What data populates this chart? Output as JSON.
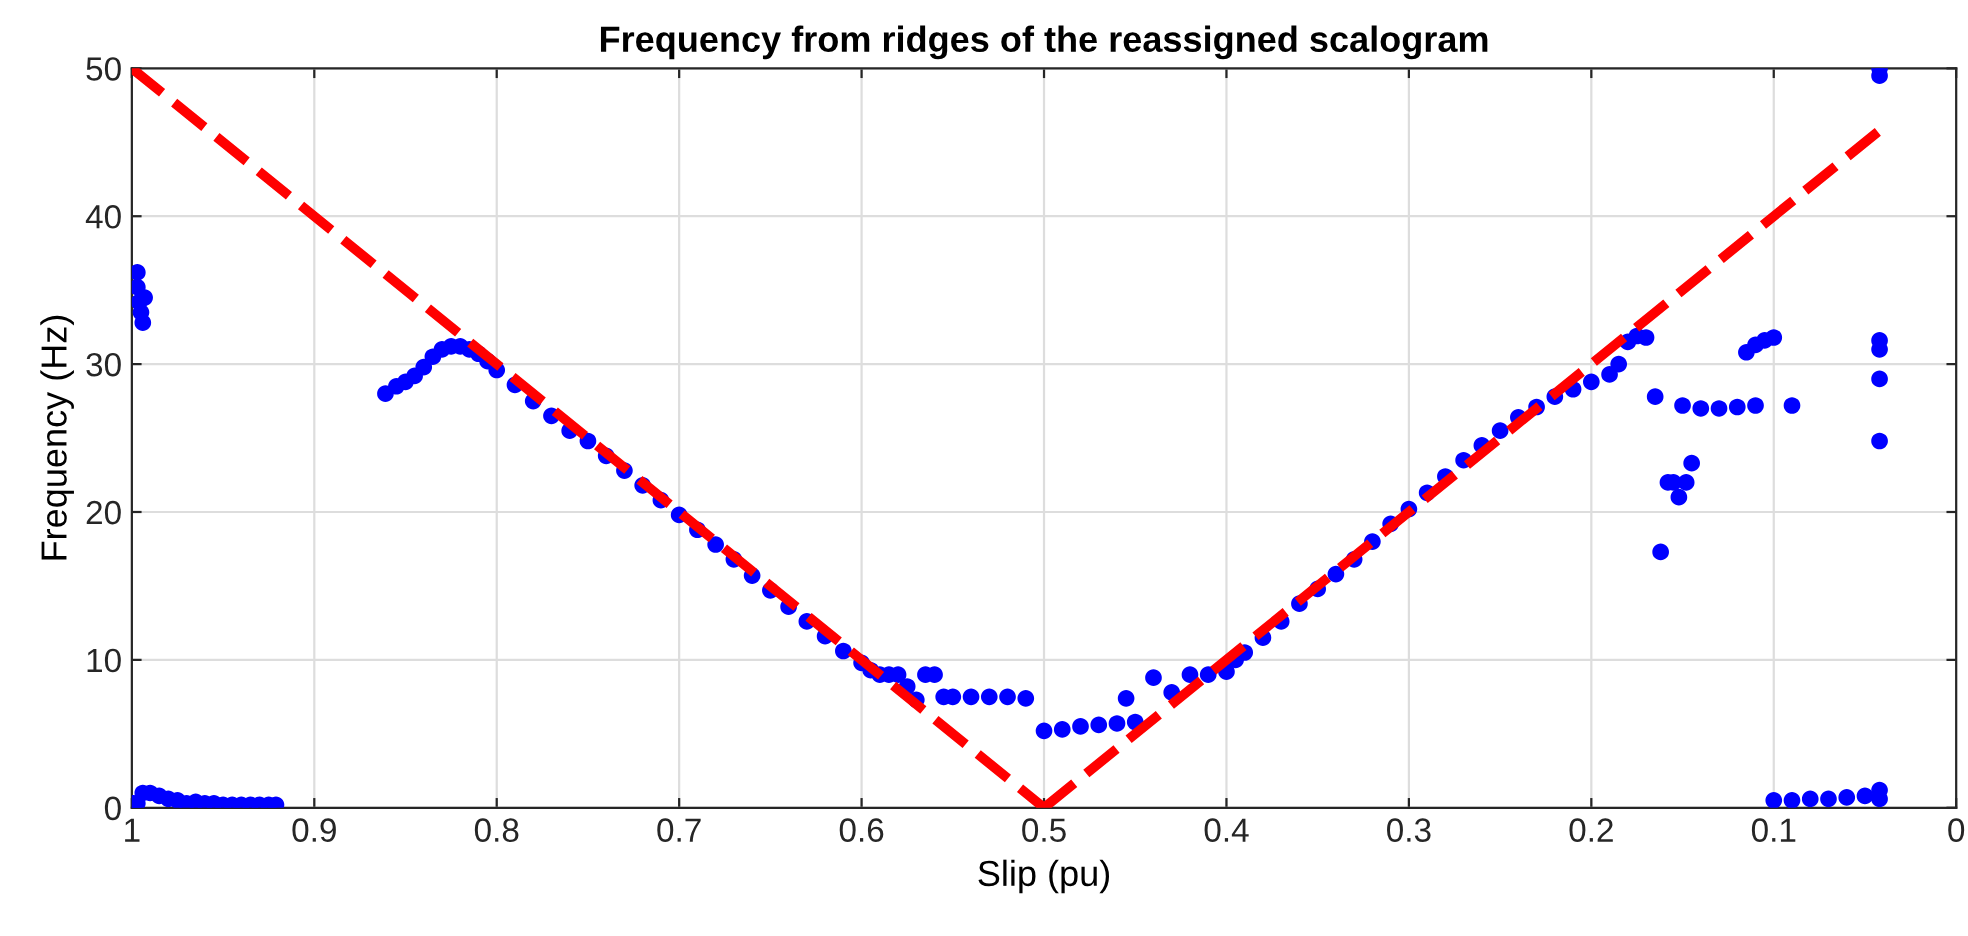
{
  "chart_data": {
    "type": "scatter",
    "title": "Frequency from ridges of the reassigned scalogram",
    "xlabel": "Slip (pu)",
    "ylabel": "Frequency (Hz)",
    "xlim": [
      1,
      0
    ],
    "ylim": [
      0,
      50
    ],
    "xticks": [
      1,
      0.9,
      0.8,
      0.7,
      0.6,
      0.5,
      0.4,
      0.3,
      0.2,
      0.1,
      0
    ],
    "yticks": [
      0,
      10,
      20,
      30,
      40,
      50
    ],
    "grid": true,
    "legend": false,
    "series": [
      {
        "color": "#0000ff",
        "marker": "circle",
        "x": [
          0.999,
          0.997,
          0.997,
          0.996,
          0.995,
          0.994,
          0.993,
          0.997,
          0.994,
          0.99,
          0.985,
          0.98,
          0.975,
          0.97,
          0.965,
          0.96,
          0.955,
          0.95,
          0.945,
          0.94,
          0.935,
          0.93,
          0.925,
          0.921,
          0.861,
          0.855,
          0.85,
          0.845,
          0.84,
          0.835,
          0.83,
          0.825,
          0.82,
          0.815,
          0.81,
          0.805,
          0.8,
          0.79,
          0.78,
          0.77,
          0.76,
          0.75,
          0.74,
          0.73,
          0.72,
          0.71,
          0.7,
          0.69,
          0.68,
          0.67,
          0.66,
          0.65,
          0.64,
          0.63,
          0.62,
          0.61,
          0.6,
          0.595,
          0.59,
          0.585,
          0.58,
          0.575,
          0.57,
          0.565,
          0.56,
          0.555,
          0.55,
          0.54,
          0.53,
          0.52,
          0.51,
          0.5,
          0.49,
          0.48,
          0.47,
          0.46,
          0.455,
          0.45,
          0.44,
          0.43,
          0.42,
          0.41,
          0.4,
          0.395,
          0.39,
          0.38,
          0.37,
          0.36,
          0.35,
          0.34,
          0.33,
          0.32,
          0.31,
          0.3,
          0.29,
          0.28,
          0.27,
          0.26,
          0.25,
          0.24,
          0.23,
          0.22,
          0.21,
          0.2,
          0.19,
          0.185,
          0.18,
          0.175,
          0.17,
          0.165,
          0.162,
          0.158,
          0.155,
          0.152,
          0.148,
          0.145,
          0.15,
          0.14,
          0.13,
          0.12,
          0.11,
          0.115,
          0.11,
          0.105,
          0.1,
          0.09,
          0.1,
          0.09,
          0.08,
          0.07,
          0.06,
          0.05,
          0.042,
          0.042,
          0.042,
          0.042,
          0.042,
          0.042,
          0.042,
          0.042
        ],
        "values": [
          0.3,
          36.2,
          35.2,
          34.2,
          33.5,
          32.8,
          34.5,
          0.3,
          1,
          1,
          0.8,
          0.6,
          0.5,
          0.3,
          0.4,
          0.3,
          0.3,
          0.2,
          0.2,
          0.2,
          0.2,
          0.2,
          0.2,
          0.2,
          28,
          28.5,
          28.8,
          29.2,
          29.8,
          30.5,
          31,
          31.2,
          31.2,
          31,
          30.7,
          30.2,
          29.6,
          28.6,
          27.5,
          26.5,
          25.5,
          24.8,
          23.8,
          22.8,
          21.8,
          20.8,
          19.8,
          18.8,
          17.8,
          16.8,
          15.7,
          14.7,
          13.6,
          12.6,
          11.6,
          10.6,
          9.8,
          9.3,
          9,
          9,
          9,
          8.2,
          7.3,
          9,
          9,
          7.5,
          7.5,
          7.5,
          7.5,
          7.5,
          7.4,
          5.2,
          5.3,
          5.5,
          5.6,
          5.7,
          7.4,
          5.8,
          8.8,
          7.8,
          9,
          9,
          9.2,
          10,
          10.5,
          11.5,
          12.6,
          13.8,
          14.8,
          15.8,
          16.8,
          18,
          19.2,
          20.2,
          21.3,
          22.4,
          23.5,
          24.5,
          25.5,
          26.4,
          27.1,
          27.8,
          28.3,
          28.8,
          29.3,
          30,
          31.5,
          31.9,
          31.8,
          27.8,
          17.3,
          22,
          22,
          21,
          22,
          23.3,
          27.2,
          27,
          27,
          27.1,
          27.2,
          30.8,
          31.3,
          31.6,
          31.8,
          27.2,
          0.5,
          0.5,
          0.6,
          0.6,
          0.7,
          0.8,
          1.2,
          50,
          49.5,
          31.6,
          31,
          29,
          24.8,
          0.6
        ]
      },
      {
        "type": "line",
        "color": "#ff0000",
        "line_style": "dashed",
        "marker": "none",
        "x": [
          1,
          0.5
        ],
        "values": [
          50,
          0
        ]
      },
      {
        "type": "line",
        "color": "#ff0000",
        "line_style": "dashed",
        "marker": "none",
        "x": [
          0.5,
          0.04
        ],
        "values": [
          0,
          46
        ]
      }
    ]
  }
}
